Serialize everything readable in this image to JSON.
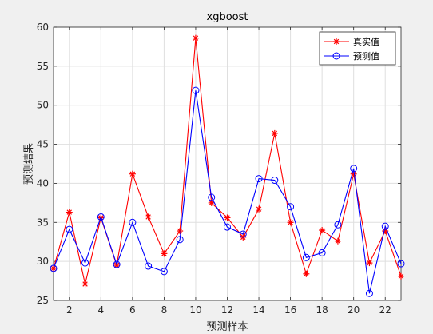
{
  "chart_data": {
    "type": "line",
    "title": "xgboost",
    "xlabel": "预测样本",
    "ylabel": "预测结果",
    "xlim": [
      1,
      23
    ],
    "ylim": [
      25,
      60
    ],
    "xticks": [
      2,
      4,
      6,
      8,
      10,
      12,
      14,
      16,
      18,
      20,
      22
    ],
    "yticks": [
      25,
      30,
      35,
      40,
      45,
      50,
      55,
      60
    ],
    "grid": true,
    "legend_position": "top-right",
    "x": [
      1,
      2,
      3,
      4,
      5,
      6,
      7,
      8,
      9,
      10,
      11,
      12,
      13,
      14,
      15,
      16,
      17,
      18,
      19,
      20,
      21,
      22,
      23
    ],
    "series": [
      {
        "name": "真实值",
        "color": "#ff0000",
        "marker": "asterisk",
        "values": [
          29.1,
          36.3,
          27.1,
          35.6,
          29.5,
          41.2,
          35.7,
          31.0,
          33.9,
          58.6,
          37.5,
          35.6,
          33.1,
          36.7,
          46.4,
          35.0,
          28.4,
          34.0,
          32.6,
          41.2,
          29.8,
          33.9,
          28.1
        ]
      },
      {
        "name": "预测值",
        "color": "#0000ff",
        "marker": "circle",
        "values": [
          29.1,
          34.1,
          29.8,
          35.7,
          29.6,
          35.0,
          29.4,
          28.7,
          32.8,
          51.9,
          38.2,
          34.4,
          33.5,
          40.6,
          40.4,
          37.0,
          30.5,
          31.1,
          34.7,
          41.9,
          25.9,
          34.5,
          29.7
        ]
      }
    ]
  }
}
